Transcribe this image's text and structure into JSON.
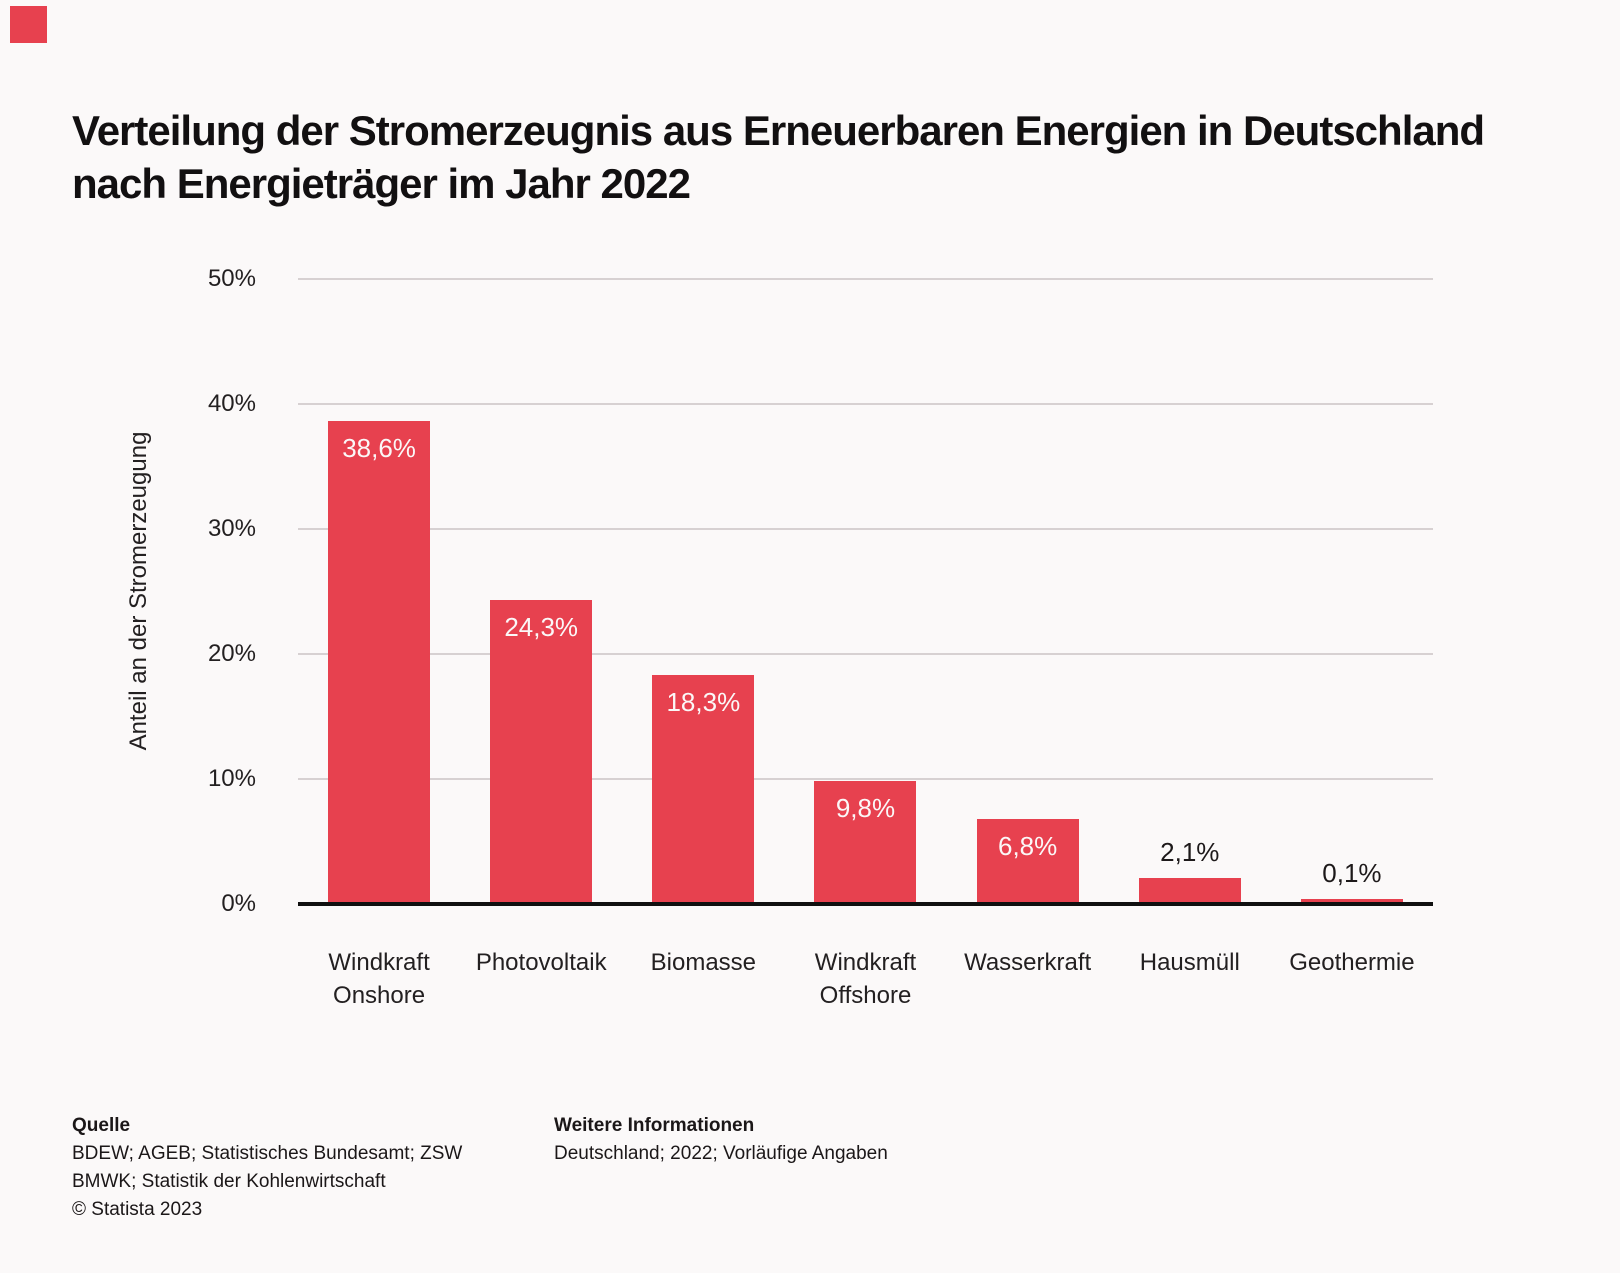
{
  "brand": {
    "accent_color": "#E7414F"
  },
  "header": {
    "title_line1": "Verteilung der Stromerzeugnis aus Erneuerbaren Energien in Deutschland",
    "title_line2": "nach Energieträger im Jahr 2022"
  },
  "chart_data": {
    "type": "bar",
    "title": "Verteilung der Stromerzeugnis aus Erneuerbaren Energien in Deutschland nach Energieträger im Jahr 2022",
    "categories": [
      "Windkraft Onshore",
      "Photovoltaik",
      "Biomasse",
      "Windkraft Offshore",
      "Wasserkraft",
      "Hausmüll",
      "Geothermie"
    ],
    "category_label_lines": [
      [
        "Windkraft",
        "Onshore"
      ],
      [
        "Photovoltaik"
      ],
      [
        "Biomasse"
      ],
      [
        "Windkraft",
        "Offshore"
      ],
      [
        "Wasserkraft"
      ],
      [
        "Hausmüll"
      ],
      [
        "Geothermie"
      ]
    ],
    "values": [
      38.6,
      24.3,
      18.3,
      9.8,
      6.8,
      2.1,
      0.1
    ],
    "value_labels": [
      "38,6%",
      "24,3%",
      "18,3%",
      "9,8%",
      "6,8%",
      "2,1%",
      "0,1%"
    ],
    "label_placement": [
      "inside",
      "inside",
      "inside",
      "inside",
      "inside",
      "above",
      "above"
    ],
    "xlabel": "",
    "ylabel": "Anteil an der Stromerzeugung",
    "ylim": [
      0,
      50
    ],
    "yticks": [
      0,
      10,
      20,
      30,
      40,
      50
    ],
    "ytick_labels": [
      "0%",
      "10%",
      "20%",
      "30%",
      "40%",
      "50%"
    ],
    "grid": "horizontal",
    "legend": "none",
    "bar_color": "#E7414F",
    "gridline_color": "#D7D1D2",
    "axis_line_color": "#101010",
    "background_color": "#FBF9F9"
  },
  "footer": {
    "source_heading": "Quelle",
    "source_line1": "BDEW; AGEB; Statistisches Bundesamt; ZSW",
    "source_line2": "BMWK; Statistik der Kohlenwirtschaft",
    "copyright": "© Statista 2023",
    "info_heading": "Weitere Informationen",
    "info_line1": "Deutschland; 2022; Vorläufige Angaben"
  }
}
